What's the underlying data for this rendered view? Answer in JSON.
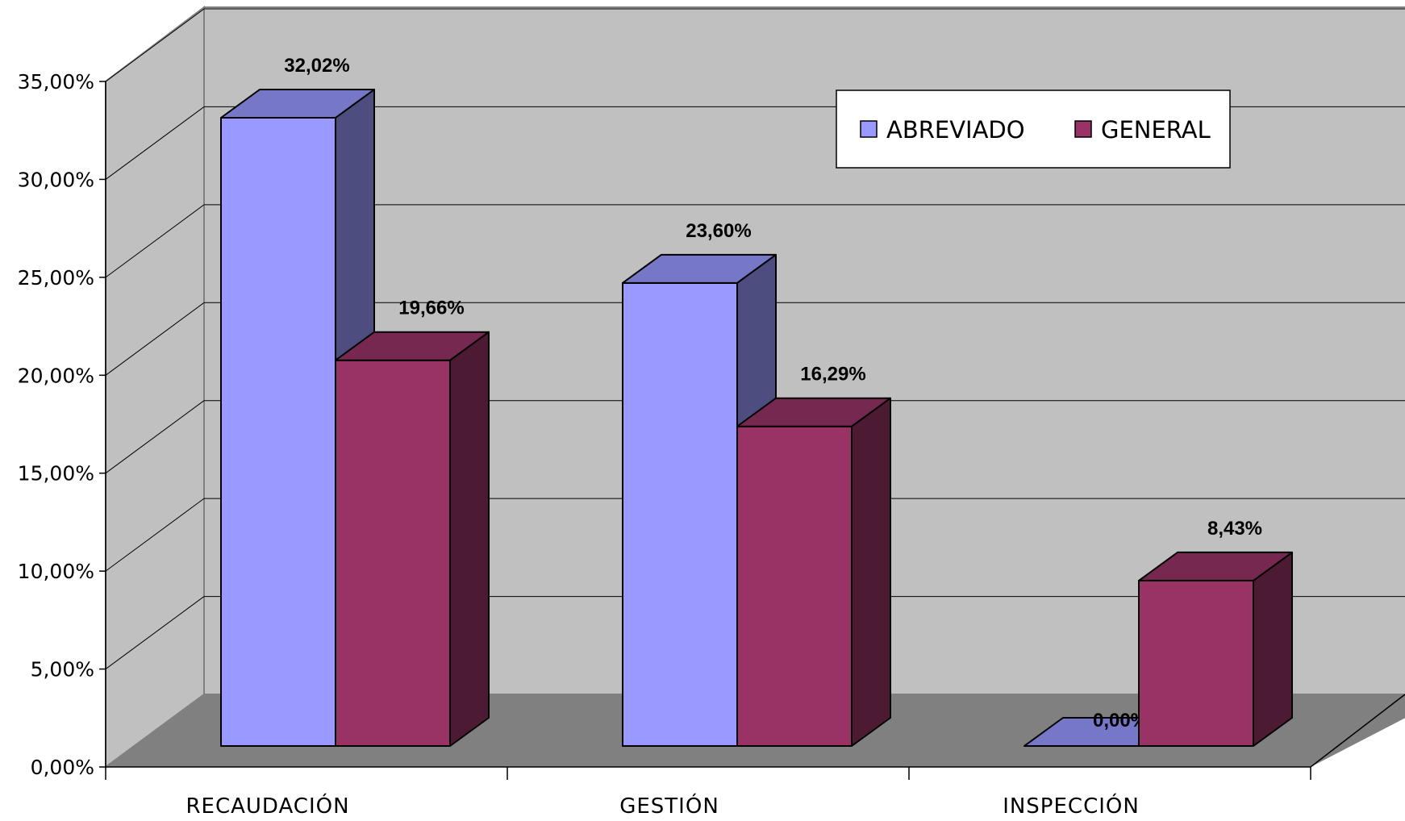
{
  "chart_data": {
    "type": "bar",
    "style": "3d-clustered-column",
    "title": "",
    "xlabel": "",
    "ylabel": "",
    "categories": [
      "RECAUDACIÓN",
      "GESTIÓN",
      "INSPECCIÓN"
    ],
    "series": [
      {
        "name": "ABREVIADO",
        "values": [
          32.02,
          23.6,
          0.0
        ],
        "value_labels": [
          "32,02%",
          "23,60%",
          "0,00%"
        ],
        "color": "#9999ff"
      },
      {
        "name": "GENERAL",
        "values": [
          19.66,
          16.29,
          8.43
        ],
        "value_labels": [
          "19,66%",
          "16,29%",
          "8,43%"
        ],
        "color": "#993366"
      }
    ],
    "ylim": [
      0,
      35
    ],
    "yticks": [
      "0,00%",
      "5,00%",
      "10,00%",
      "15,00%",
      "20,00%",
      "25,00%",
      "30,00%",
      "35,00%"
    ],
    "grid": true,
    "legend_position": "top-right",
    "wall_color": "#c0c0c0",
    "floor_color": "#808080"
  }
}
